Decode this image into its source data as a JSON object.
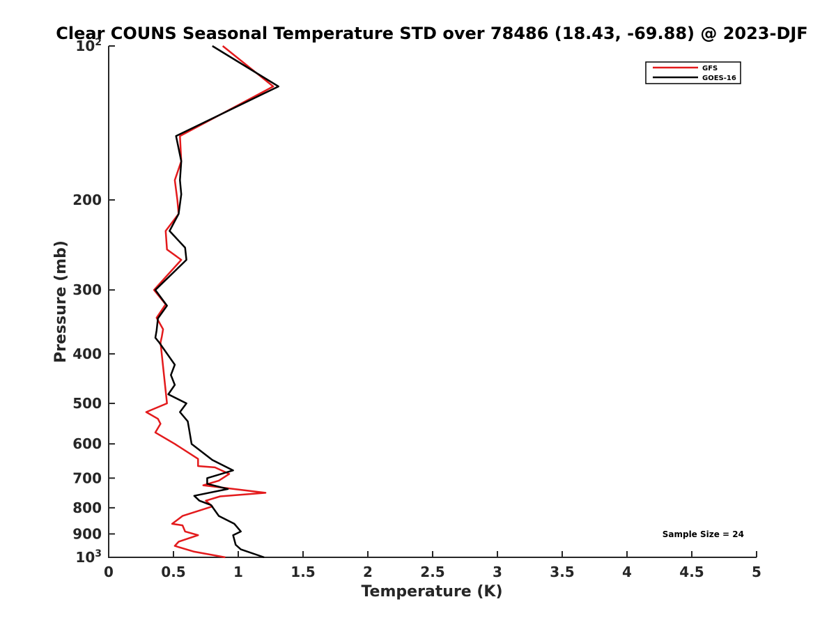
{
  "chart_data": {
    "type": "line",
    "title": "Clear COUNS Seasonal Temperature STD over 78486 (18.43, -69.88) @ 2023-DJF",
    "xlabel": "Temperature (K)",
    "ylabel": "Pressure (mb)",
    "xlim": [
      0,
      5
    ],
    "ylim": [
      100,
      1000
    ],
    "y_scale": "log",
    "y_reversed": true,
    "grid": false,
    "legend_position": "top-right",
    "x_ticks": [
      {
        "value": 0,
        "label": "0"
      },
      {
        "value": 0.5,
        "label": "0.5"
      },
      {
        "value": 1,
        "label": "1"
      },
      {
        "value": 1.5,
        "label": "1.5"
      },
      {
        "value": 2,
        "label": "2"
      },
      {
        "value": 2.5,
        "label": "2.5"
      },
      {
        "value": 3,
        "label": "3"
      },
      {
        "value": 3.5,
        "label": "3.5"
      },
      {
        "value": 4,
        "label": "4"
      },
      {
        "value": 4.5,
        "label": "4.5"
      },
      {
        "value": 5,
        "label": "5"
      }
    ],
    "y_ticks": [
      {
        "value": 100,
        "label": "10",
        "sup": "2"
      },
      {
        "value": 200,
        "label": "200"
      },
      {
        "value": 300,
        "label": "300"
      },
      {
        "value": 400,
        "label": "400"
      },
      {
        "value": 500,
        "label": "500"
      },
      {
        "value": 600,
        "label": "600"
      },
      {
        "value": 700,
        "label": "700"
      },
      {
        "value": 800,
        "label": "800"
      },
      {
        "value": 900,
        "label": "900"
      },
      {
        "value": 1000,
        "label": "10",
        "sup": "3"
      }
    ],
    "annotation": "Sample Size = 24",
    "series": [
      {
        "name": "GFS",
        "color": "#e31a1c",
        "points": [
          [
            0.88,
            100
          ],
          [
            1.27,
            120
          ],
          [
            0.55,
            150
          ],
          [
            0.56,
            168
          ],
          [
            0.51,
            183
          ],
          [
            0.53,
            200
          ],
          [
            0.54,
            213
          ],
          [
            0.44,
            230
          ],
          [
            0.45,
            250
          ],
          [
            0.56,
            262
          ],
          [
            0.35,
            300
          ],
          [
            0.44,
            320
          ],
          [
            0.37,
            340
          ],
          [
            0.42,
            358
          ],
          [
            0.41,
            370
          ],
          [
            0.4,
            380
          ],
          [
            0.45,
            500
          ],
          [
            0.29,
            520
          ],
          [
            0.38,
            536
          ],
          [
            0.4,
            548
          ],
          [
            0.36,
            570
          ],
          [
            0.51,
            600
          ],
          [
            0.69,
            642
          ],
          [
            0.69,
            663
          ],
          [
            0.82,
            667
          ],
          [
            0.93,
            687
          ],
          [
            0.85,
            708
          ],
          [
            0.73,
            723
          ],
          [
            1.21,
            748
          ],
          [
            0.86,
            760
          ],
          [
            0.75,
            775
          ],
          [
            0.8,
            795
          ],
          [
            0.57,
            830
          ],
          [
            0.49,
            860
          ],
          [
            0.57,
            866
          ],
          [
            0.59,
            890
          ],
          [
            0.69,
            905
          ],
          [
            0.54,
            932
          ],
          [
            0.51,
            950
          ],
          [
            0.66,
            975
          ],
          [
            0.9,
            1000
          ]
        ]
      },
      {
        "name": "GOES-16",
        "color": "#000000",
        "points": [
          [
            0.8,
            100
          ],
          [
            1.31,
            120
          ],
          [
            0.52,
            150
          ],
          [
            0.56,
            168
          ],
          [
            0.55,
            183
          ],
          [
            0.56,
            195
          ],
          [
            0.54,
            213
          ],
          [
            0.47,
            230
          ],
          [
            0.59,
            248
          ],
          [
            0.6,
            262
          ],
          [
            0.36,
            300
          ],
          [
            0.45,
            322
          ],
          [
            0.38,
            341
          ],
          [
            0.37,
            360
          ],
          [
            0.36,
            372
          ],
          [
            0.39,
            380
          ],
          [
            0.51,
            420
          ],
          [
            0.48,
            440
          ],
          [
            0.51,
            460
          ],
          [
            0.46,
            480
          ],
          [
            0.6,
            500
          ],
          [
            0.55,
            520
          ],
          [
            0.61,
            542
          ],
          [
            0.62,
            560
          ],
          [
            0.63,
            580
          ],
          [
            0.64,
            600
          ],
          [
            0.8,
            645
          ],
          [
            0.96,
            676
          ],
          [
            0.76,
            700
          ],
          [
            0.76,
            718
          ],
          [
            0.92,
            735
          ],
          [
            0.66,
            758
          ],
          [
            0.7,
            775
          ],
          [
            0.79,
            790
          ],
          [
            0.85,
            830
          ],
          [
            0.97,
            860
          ],
          [
            1.02,
            890
          ],
          [
            0.96,
            905
          ],
          [
            0.98,
            945
          ],
          [
            1.02,
            965
          ],
          [
            1.2,
            1000
          ]
        ]
      }
    ]
  }
}
